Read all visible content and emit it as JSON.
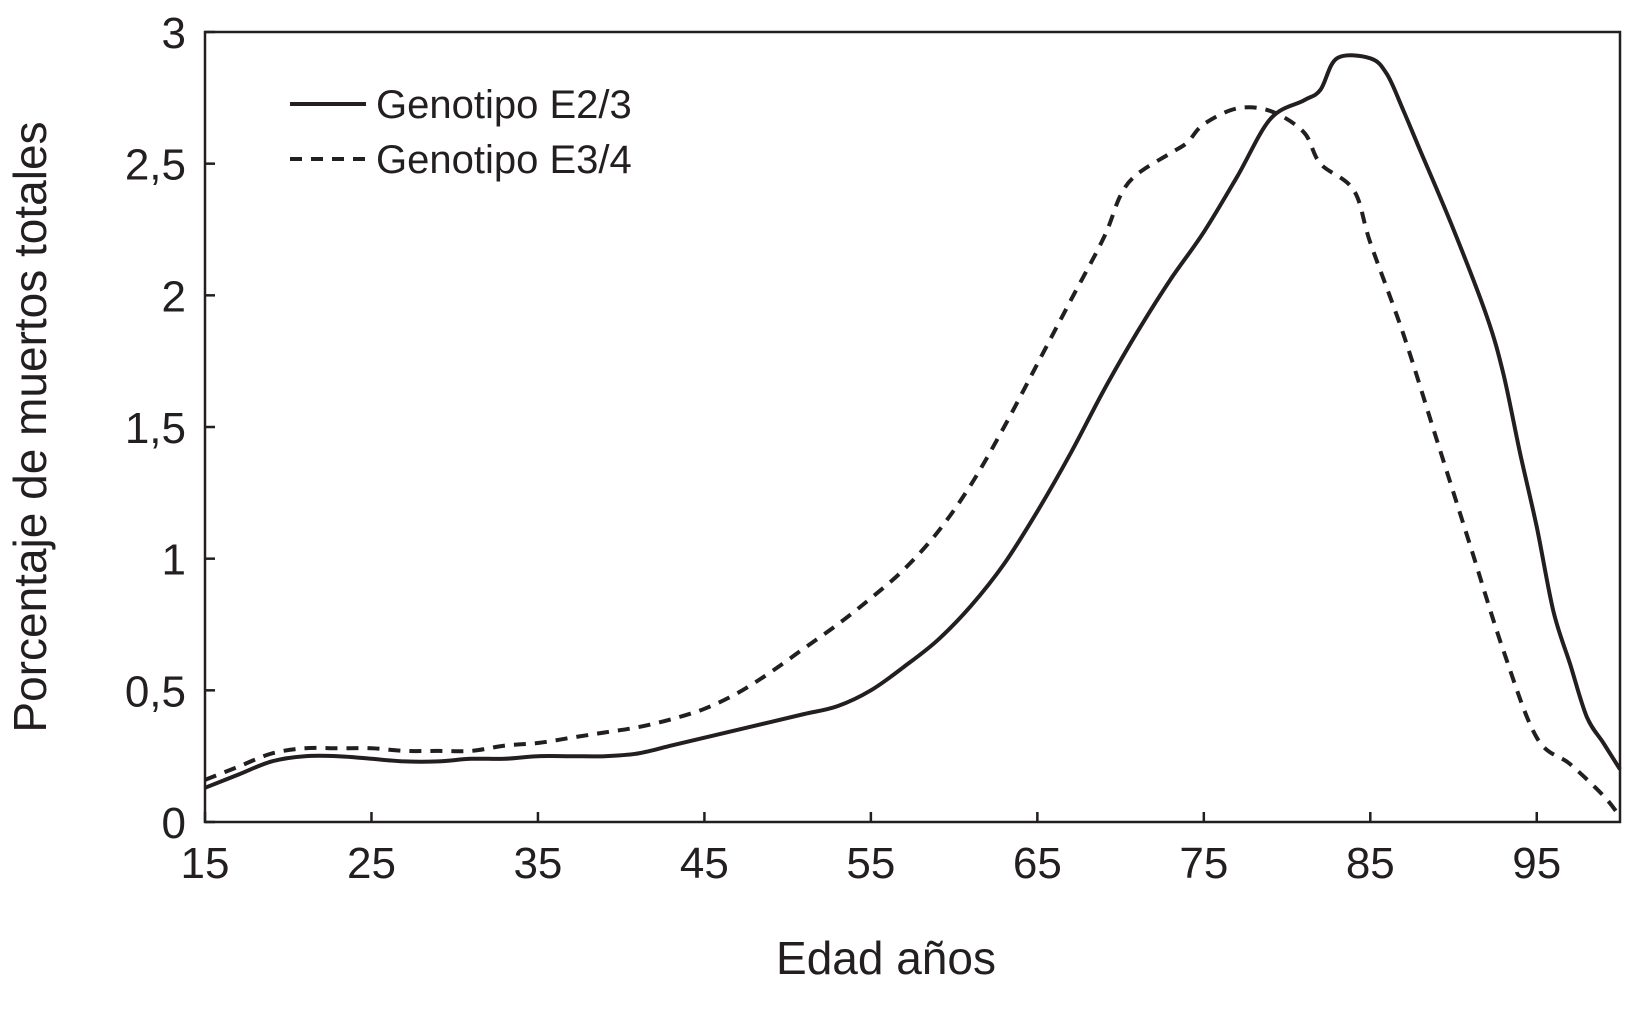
{
  "chart_data": {
    "type": "line",
    "title": "",
    "xlabel": "Edad años",
    "ylabel": "Porcentaje de muertos totales",
    "xlim": [
      15,
      100
    ],
    "ylim": [
      0,
      3
    ],
    "x_ticks": [
      "15",
      "25",
      "35",
      "45",
      "55",
      "65",
      "75",
      "85",
      "95"
    ],
    "y_ticks": [
      "0",
      "0,5",
      "1",
      "1,5",
      "2",
      "2,5",
      "3"
    ],
    "x_tick_values": [
      15,
      25,
      35,
      45,
      55,
      65,
      75,
      85,
      95
    ],
    "y_tick_values": [
      0,
      0.5,
      1,
      1.5,
      2,
      2.5,
      3
    ],
    "grid": false,
    "legend_position": "top-left",
    "series": [
      {
        "name": "Genotipo E2/3",
        "style": "solid",
        "color": "#231f20",
        "points": [
          [
            15,
            0.13
          ],
          [
            17,
            0.18
          ],
          [
            19,
            0.23
          ],
          [
            21,
            0.25
          ],
          [
            23,
            0.25
          ],
          [
            25,
            0.24
          ],
          [
            27,
            0.23
          ],
          [
            29,
            0.23
          ],
          [
            31,
            0.24
          ],
          [
            33,
            0.24
          ],
          [
            35,
            0.25
          ],
          [
            37,
            0.25
          ],
          [
            39,
            0.25
          ],
          [
            41,
            0.26
          ],
          [
            43,
            0.29
          ],
          [
            45,
            0.32
          ],
          [
            47,
            0.35
          ],
          [
            49,
            0.38
          ],
          [
            51,
            0.41
          ],
          [
            53,
            0.44
          ],
          [
            55,
            0.5
          ],
          [
            57,
            0.59
          ],
          [
            59,
            0.69
          ],
          [
            61,
            0.82
          ],
          [
            63,
            0.98
          ],
          [
            65,
            1.18
          ],
          [
            67,
            1.4
          ],
          [
            69,
            1.64
          ],
          [
            71,
            1.86
          ],
          [
            73,
            2.06
          ],
          [
            75,
            2.24
          ],
          [
            77,
            2.45
          ],
          [
            79,
            2.67
          ],
          [
            81,
            2.74
          ],
          [
            82,
            2.78
          ],
          [
            83,
            2.9
          ],
          [
            85,
            2.9
          ],
          [
            86,
            2.84
          ],
          [
            87,
            2.7
          ],
          [
            88,
            2.55
          ],
          [
            90,
            2.25
          ],
          [
            92,
            1.92
          ],
          [
            93,
            1.7
          ],
          [
            94,
            1.4
          ],
          [
            95,
            1.12
          ],
          [
            96,
            0.8
          ],
          [
            97,
            0.6
          ],
          [
            98,
            0.4
          ],
          [
            99,
            0.3
          ],
          [
            100,
            0.2
          ]
        ]
      },
      {
        "name": "Genotipo E3/4",
        "style": "dashed",
        "color": "#231f20",
        "points": [
          [
            15,
            0.16
          ],
          [
            17,
            0.21
          ],
          [
            19,
            0.26
          ],
          [
            21,
            0.28
          ],
          [
            23,
            0.28
          ],
          [
            25,
            0.28
          ],
          [
            27,
            0.27
          ],
          [
            29,
            0.27
          ],
          [
            31,
            0.27
          ],
          [
            33,
            0.29
          ],
          [
            35,
            0.3
          ],
          [
            37,
            0.32
          ],
          [
            39,
            0.34
          ],
          [
            41,
            0.36
          ],
          [
            43,
            0.39
          ],
          [
            45,
            0.43
          ],
          [
            47,
            0.49
          ],
          [
            49,
            0.57
          ],
          [
            51,
            0.66
          ],
          [
            53,
            0.75
          ],
          [
            55,
            0.85
          ],
          [
            57,
            0.96
          ],
          [
            59,
            1.1
          ],
          [
            61,
            1.28
          ],
          [
            63,
            1.5
          ],
          [
            65,
            1.74
          ],
          [
            67,
            1.98
          ],
          [
            69,
            2.22
          ],
          [
            70,
            2.38
          ],
          [
            71,
            2.46
          ],
          [
            73,
            2.54
          ],
          [
            74,
            2.58
          ],
          [
            75,
            2.65
          ],
          [
            77,
            2.71
          ],
          [
            79,
            2.7
          ],
          [
            81,
            2.62
          ],
          [
            82,
            2.5
          ],
          [
            84,
            2.4
          ],
          [
            85,
            2.2
          ],
          [
            87,
            1.85
          ],
          [
            89,
            1.45
          ],
          [
            91,
            1.05
          ],
          [
            93,
            0.65
          ],
          [
            95,
            0.32
          ],
          [
            97,
            0.22
          ],
          [
            99,
            0.1
          ],
          [
            100,
            0.02
          ]
        ]
      }
    ]
  }
}
